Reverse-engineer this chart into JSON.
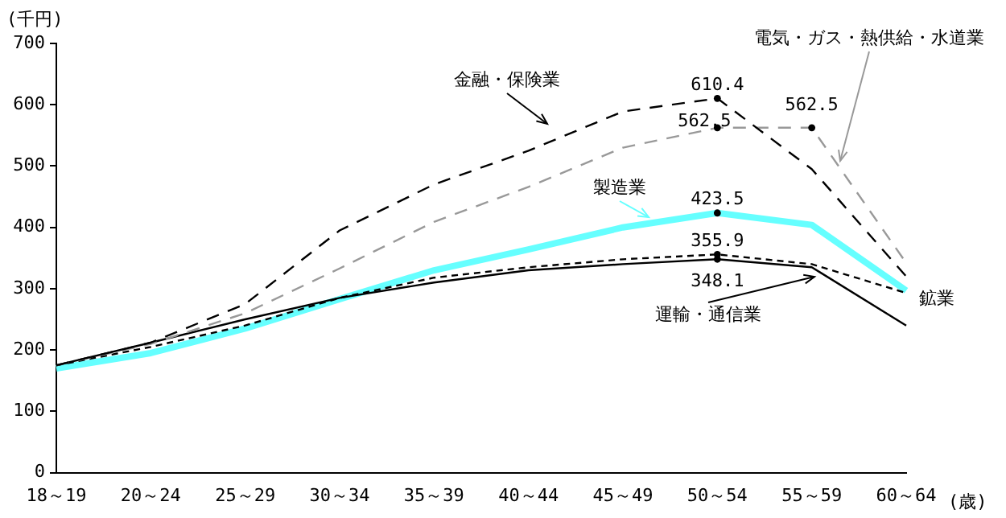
{
  "chart_data": {
    "type": "line",
    "ylabel": "(千円)",
    "xlabel": "(歳)",
    "categories": [
      "18～19",
      "20～24",
      "25～29",
      "30～34",
      "35～39",
      "40～44",
      "45～49",
      "50～54",
      "55～59",
      "60～64"
    ],
    "ylim": [
      0,
      700
    ],
    "yticks": [
      0,
      100,
      200,
      300,
      400,
      500,
      600,
      700
    ],
    "grid": false,
    "legend": false,
    "marker": "none",
    "series": [
      {
        "name": "金融・保険業",
        "color": "#000000",
        "line_style": "dashed",
        "values": [
          175,
          212,
          275,
          395,
          470,
          525,
          589,
          610.4,
          495,
          320
        ]
      },
      {
        "name": "電気・ガス・熱供給・水道業",
        "color": "#999999",
        "line_style": "dashed",
        "values": [
          175,
          210,
          260,
          333,
          409,
          466,
          530,
          562.5,
          562.5,
          342
        ]
      },
      {
        "name": "製造業",
        "color": "#66ffff",
        "line_style": "solid",
        "values": [
          170,
          195,
          235,
          283,
          330,
          364,
          400,
          423.5,
          404,
          297
        ]
      },
      {
        "name": "運輸・通信業",
        "color": "#000000",
        "line_style": "solid",
        "values": [
          175,
          212,
          250,
          285,
          310,
          330,
          340,
          348.1,
          335,
          240
        ]
      },
      {
        "name": "鉱業",
        "color": "#000000",
        "line_style": "dotted",
        "values": [
          175,
          205,
          240,
          285,
          318,
          335,
          348,
          355.9,
          340,
          293
        ]
      }
    ],
    "annotations": [
      {
        "text": "610.4",
        "x": "50～54",
        "y": 610.4
      },
      {
        "text": "562.5",
        "x": "50～54",
        "y": 562.5
      },
      {
        "text": "562.5",
        "x": "55～59",
        "y": 562.5
      },
      {
        "text": "423.5",
        "x": "50～54",
        "y": 423.5
      },
      {
        "text": "355.9",
        "x": "50～54",
        "y": 355.9
      },
      {
        "text": "348.1",
        "x": "50～54",
        "y": 348.1
      }
    ]
  }
}
